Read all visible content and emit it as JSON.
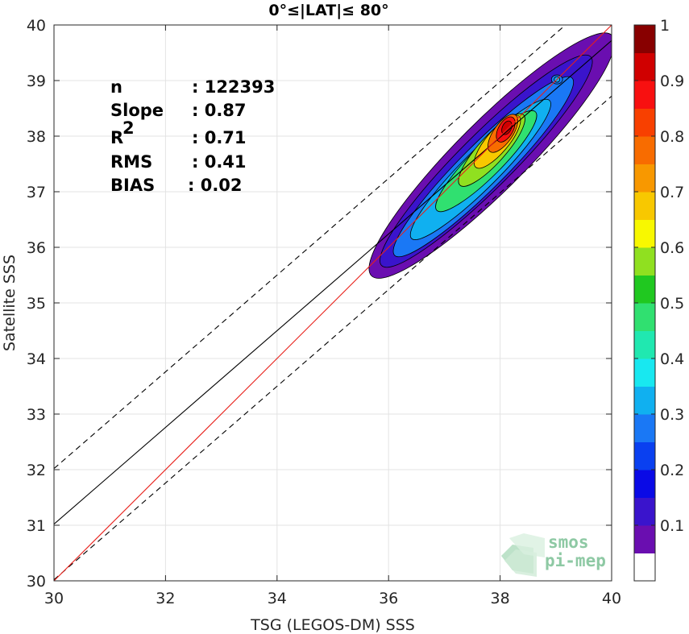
{
  "chart_data": {
    "type": "contour-scatter",
    "title": "0°≤|LAT|≤ 80°",
    "xlabel": "TSG (LEGOS-DM) SSS",
    "ylabel": "Satellite SSS",
    "xlim": [
      30,
      40
    ],
    "ylim": [
      30,
      40
    ],
    "xticks": [
      "30",
      "32",
      "34",
      "36",
      "38",
      "40"
    ],
    "yticks": [
      "30",
      "31",
      "32",
      "33",
      "34",
      "35",
      "36",
      "37",
      "38",
      "39",
      "40"
    ],
    "grid": true,
    "stats": [
      {
        "label": "n",
        "value": ": 122393"
      },
      {
        "label": "Slope",
        "value": ": 0.87"
      },
      {
        "label": "R",
        "sup": "2",
        "value": ": 0.71"
      },
      {
        "label": "RMS",
        "value": ": 0.41"
      },
      {
        "label": "BIAS",
        "value": ": 0.02"
      }
    ],
    "reference_lines": {
      "identity": {
        "color": "#e8201a",
        "x": [
          30,
          40
        ],
        "y": [
          30,
          40
        ]
      },
      "fit": {
        "color": "#000000",
        "x": [
          30,
          40
        ],
        "y": [
          31.02,
          39.72
        ]
      },
      "fit_upper_dashed": {
        "color": "#000000",
        "x": [
          30,
          40
        ],
        "y": [
          32.02,
          40.72
        ]
      },
      "fit_lower_dashed": {
        "color": "#000000",
        "x": [
          30,
          40
        ],
        "y": [
          30.02,
          38.72
        ]
      }
    },
    "density_contours": [
      {
        "level": 0.05,
        "center": [
          37.85,
          37.65
        ],
        "major": 3.05,
        "minor": 0.62,
        "angle_deg": 45
      },
      {
        "level": 0.15,
        "center": [
          37.75,
          37.55
        ],
        "major": 2.65,
        "minor": 0.48,
        "angle_deg": 45
      },
      {
        "level": 0.25,
        "center": [
          37.7,
          37.45
        ],
        "major": 2.25,
        "minor": 0.4,
        "angle_deg": 45
      },
      {
        "level": 0.35,
        "center": [
          37.65,
          37.4
        ],
        "major": 1.75,
        "minor": 0.33,
        "angle_deg": 45
      },
      {
        "level": 0.45,
        "center": [
          37.75,
          37.55
        ],
        "major": 1.25,
        "minor": 0.28,
        "angle_deg": 45
      },
      {
        "level": 0.55,
        "center": [
          37.85,
          37.75
        ],
        "major": 0.85,
        "minor": 0.24,
        "angle_deg": 48
      },
      {
        "level": 0.65,
        "center": [
          37.95,
          37.9
        ],
        "major": 0.6,
        "minor": 0.2,
        "angle_deg": 50
      },
      {
        "level": 0.75,
        "center": [
          38.05,
          38.05
        ],
        "major": 0.4,
        "minor": 0.17,
        "angle_deg": 55
      },
      {
        "level": 0.85,
        "center": [
          38.1,
          38.12
        ],
        "major": 0.25,
        "minor": 0.13,
        "angle_deg": 60
      },
      {
        "level": 0.95,
        "center": [
          38.12,
          38.15
        ],
        "major": 0.13,
        "minor": 0.08,
        "angle_deg": 65
      },
      {
        "level": 0.25,
        "center": [
          39.02,
          39.02
        ],
        "major": 0.1,
        "minor": 0.08,
        "angle_deg": 0
      },
      {
        "level": 0.35,
        "center": [
          39.02,
          39.02
        ],
        "major": 0.05,
        "minor": 0.05,
        "angle_deg": 0
      }
    ],
    "colorbar": {
      "ticks": [
        "0.1",
        "0.2",
        "0.3",
        "0.4",
        "0.5",
        "0.6",
        "0.7",
        "0.8",
        "0.9",
        "1"
      ],
      "tick_values": [
        0.1,
        0.2,
        0.3,
        0.4,
        0.5,
        0.6,
        0.7,
        0.8,
        0.9,
        1.0
      ],
      "colors": [
        "#ffffff",
        "#6a0eb0",
        "#3a14cc",
        "#0a0ae6",
        "#0a40f0",
        "#1a78f5",
        "#10b0f0",
        "#18e8f0",
        "#20e8b0",
        "#30e070",
        "#20c820",
        "#90e020",
        "#f8f800",
        "#f8c800",
        "#f89800",
        "#f86c00",
        "#f84000",
        "#f81010",
        "#d00000",
        "#880000"
      ]
    }
  },
  "logo": {
    "line1": "smos",
    "line2": "pi-mep"
  }
}
